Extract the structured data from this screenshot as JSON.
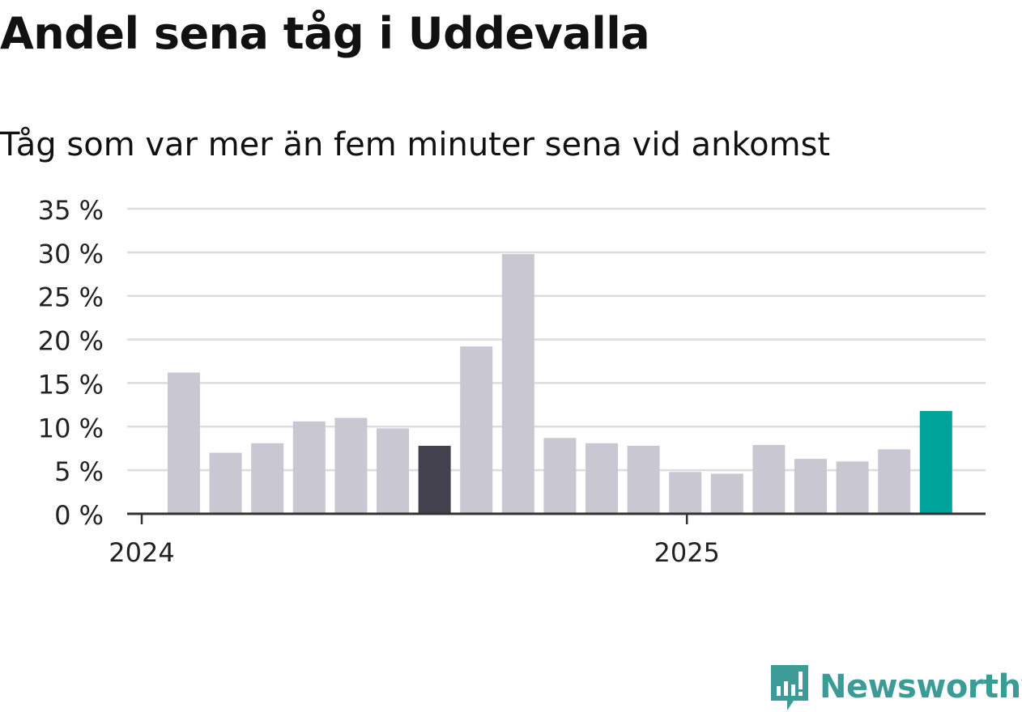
{
  "title": "Andel sena tåg i Uddevalla",
  "subtitle": "Tåg som var mer än fem minuter sena vid ankomst",
  "brand": {
    "name": "Newsworthy",
    "color": "#3c9b96"
  },
  "colors": {
    "bar": "#c9c8d2",
    "highlight_dark": "#43414e",
    "highlight_latest": "#00a49a",
    "grid": "#dcdcdc",
    "axis": "#333333"
  },
  "chart_data": {
    "type": "bar",
    "x": [
      "2024-01",
      "2024-02",
      "2024-03",
      "2024-04",
      "2024-05",
      "2024-06",
      "2024-07",
      "2024-08",
      "2024-09",
      "2024-10",
      "2024-11",
      "2024-12",
      "2025-01",
      "2025-02",
      "2025-03",
      "2025-04",
      "2025-05",
      "2025-06",
      "2025-07"
    ],
    "values": [
      16.2,
      7.0,
      8.1,
      10.6,
      11.0,
      9.8,
      7.8,
      19.2,
      29.8,
      8.7,
      8.1,
      7.8,
      4.8,
      4.6,
      7.9,
      6.3,
      6.0,
      7.4,
      11.8
    ],
    "highlight": {
      "2024-07": "highlight_dark",
      "2025-07": "highlight_latest"
    },
    "y_ticks": [
      "0 %",
      "5 %",
      "10 %",
      "15 %",
      "20 %",
      "25 %",
      "30 %",
      "35 %"
    ],
    "ylim": [
      0,
      35
    ],
    "x_ticks": [
      {
        "label": "2024",
        "at": "2024-01"
      },
      {
        "label": "2025",
        "at": "2025-01"
      }
    ],
    "grid": true,
    "xlabel": "",
    "ylabel": ""
  }
}
